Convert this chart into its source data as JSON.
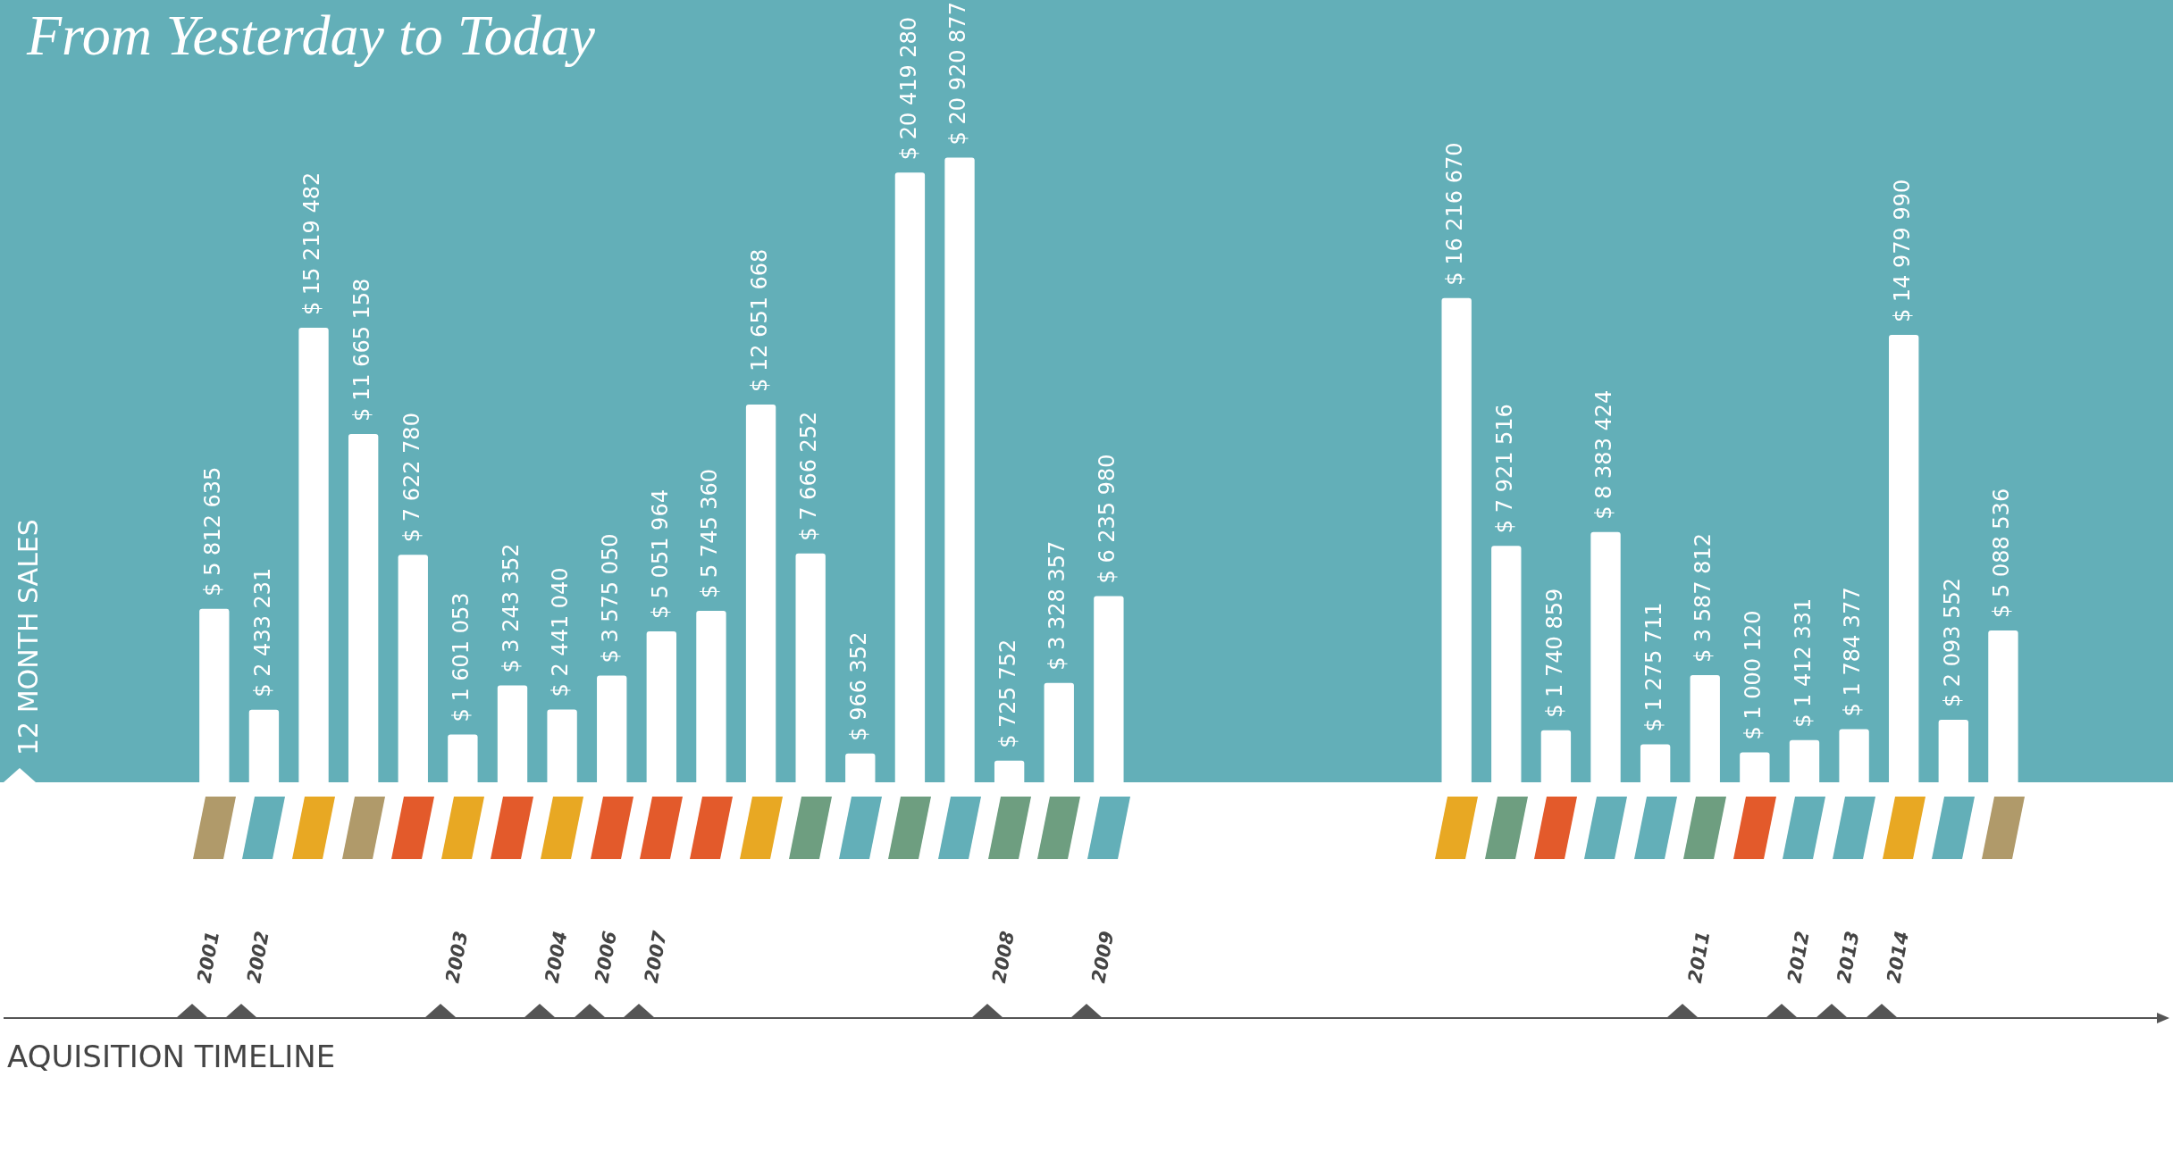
{
  "chart_data": {
    "type": "bar",
    "title": "From Yesterday to Today",
    "annotations": [
      "12 MONTH SALES",
      "AQUISITION TIMELINE"
    ],
    "color": "#ffffff",
    "tick_labels": "x",
    "categories": [
      "2001",
      "2002",
      null,
      null,
      null,
      "2003",
      null,
      "2004",
      "2006",
      "2007",
      null,
      null,
      null,
      null,
      null,
      null,
      "2008",
      null,
      "2009",
      null,
      null,
      null,
      null,
      null,
      null,
      null,
      null,
      null,
      null,
      null,
      "2011",
      null,
      "2012",
      "2013",
      "2014",
      null,
      null
    ],
    "values": [
      5812635,
      2433231,
      15219482,
      11665158,
      7622780,
      1601053,
      3243352,
      2441040,
      3575050,
      5051964,
      5745360,
      12651668,
      7666252,
      966352,
      20419280,
      20920877,
      725752,
      3328357,
      6235980,
      null,
      null,
      null,
      null,
      null,
      null,
      16216670,
      7921516,
      1740859,
      8383424,
      1275711,
      3587812,
      1000120,
      1412331,
      1784377,
      14979990,
      2093552,
      5088536
    ],
    "value_labels": [
      "$ 5 812 635",
      "$ 2 433 231",
      "$ 15 219 482",
      "$ 11 665 158",
      "$ 7 622 780",
      "$ 1 601 053",
      "$ 3 243 352",
      "$ 2 441 040",
      "$ 3 575 050",
      "$ 5 051 964",
      "$ 5 745 360",
      "$ 12 651 668",
      "$ 7 666 252",
      "$ 966 352",
      "$ 20 419 280",
      "$ 20 920 877",
      "$ 725 752",
      "$ 3 328 357",
      "$ 6 235 980",
      null,
      null,
      null,
      null,
      null,
      null,
      "$ 16 216 670",
      "$ 7 921 516",
      "$ 1 740 859",
      "$ 8 383 424",
      "$ 1 275 711",
      "$ 3 587 812",
      "$ 1 000 120",
      "$ 1 412 331",
      "$ 1 784 377",
      "$ 14 979 990",
      "$ 2 093 552",
      "$ 5 088 536"
    ]
  }
}
